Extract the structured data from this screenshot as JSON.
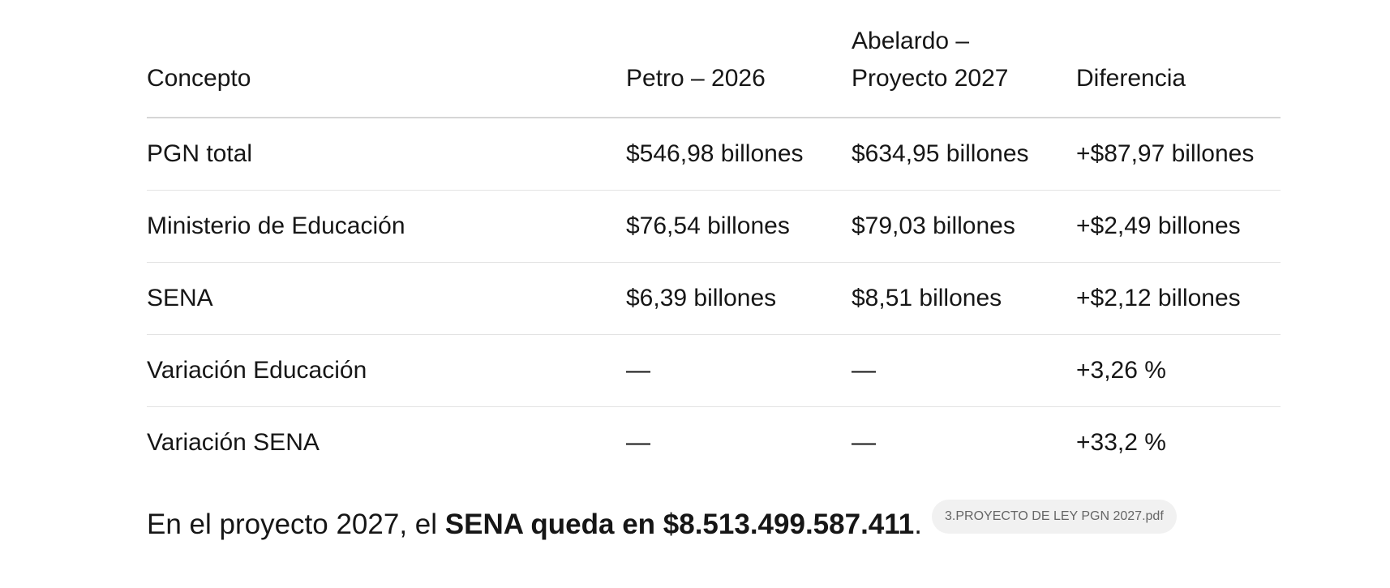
{
  "table": {
    "header": [
      "Concepto",
      "Petro – 2026",
      "Abelardo – Proyecto 2027",
      "Diferencia"
    ],
    "rows": [
      [
        "PGN total",
        "$546,98 billones",
        "$634,95 billones",
        "+$87,97 billones"
      ],
      [
        "Ministerio de Educación",
        "$76,54 billones",
        "$79,03 billones",
        "+$2,49 billones"
      ],
      [
        "SENA",
        "$6,39 billones",
        "$8,51 billones",
        "+$2,12 billones"
      ],
      [
        "Variación Educación",
        "—",
        "—",
        "+3,26 %"
      ],
      [
        "Variación SENA",
        "—",
        "—",
        "+33,2 %"
      ]
    ]
  },
  "footer": {
    "text": "En el proyecto 2027, el ",
    "bold": "SENA queda en $8.513.499.587.411",
    "end": ".",
    "badge": "3.PROYECTO DE LEY PGN 2027.pdf"
  }
}
